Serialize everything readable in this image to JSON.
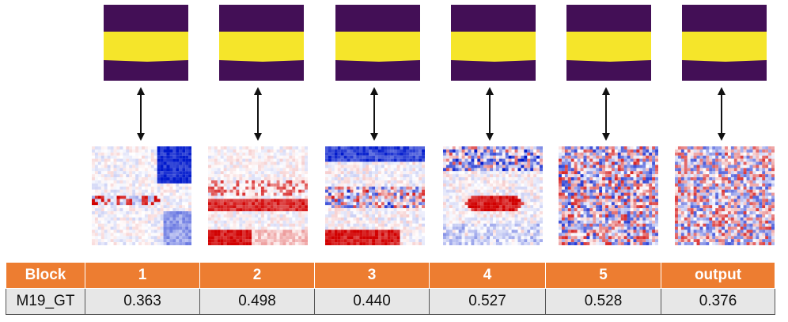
{
  "table": {
    "header": [
      "Block",
      "1",
      "2",
      "3",
      "4",
      "5",
      "output"
    ],
    "rows": [
      [
        "M19_GT",
        "0.363",
        "0.498",
        "0.440",
        "0.527",
        "0.528",
        "0.376"
      ]
    ]
  },
  "colors": {
    "mask_dark": "#430f56",
    "mask_bright": "#f5e52a",
    "heat_red": "#d10000",
    "heat_blue": "#0019cc",
    "header_bg": "#ed7d31",
    "row_bg": "#e7e7e7",
    "arrow": "#111111"
  },
  "icons": {
    "mask_tile": "segmentation-mask-image",
    "heat_tile": "attribution-heatmap-image",
    "link": "double-headed-arrow-icon"
  }
}
